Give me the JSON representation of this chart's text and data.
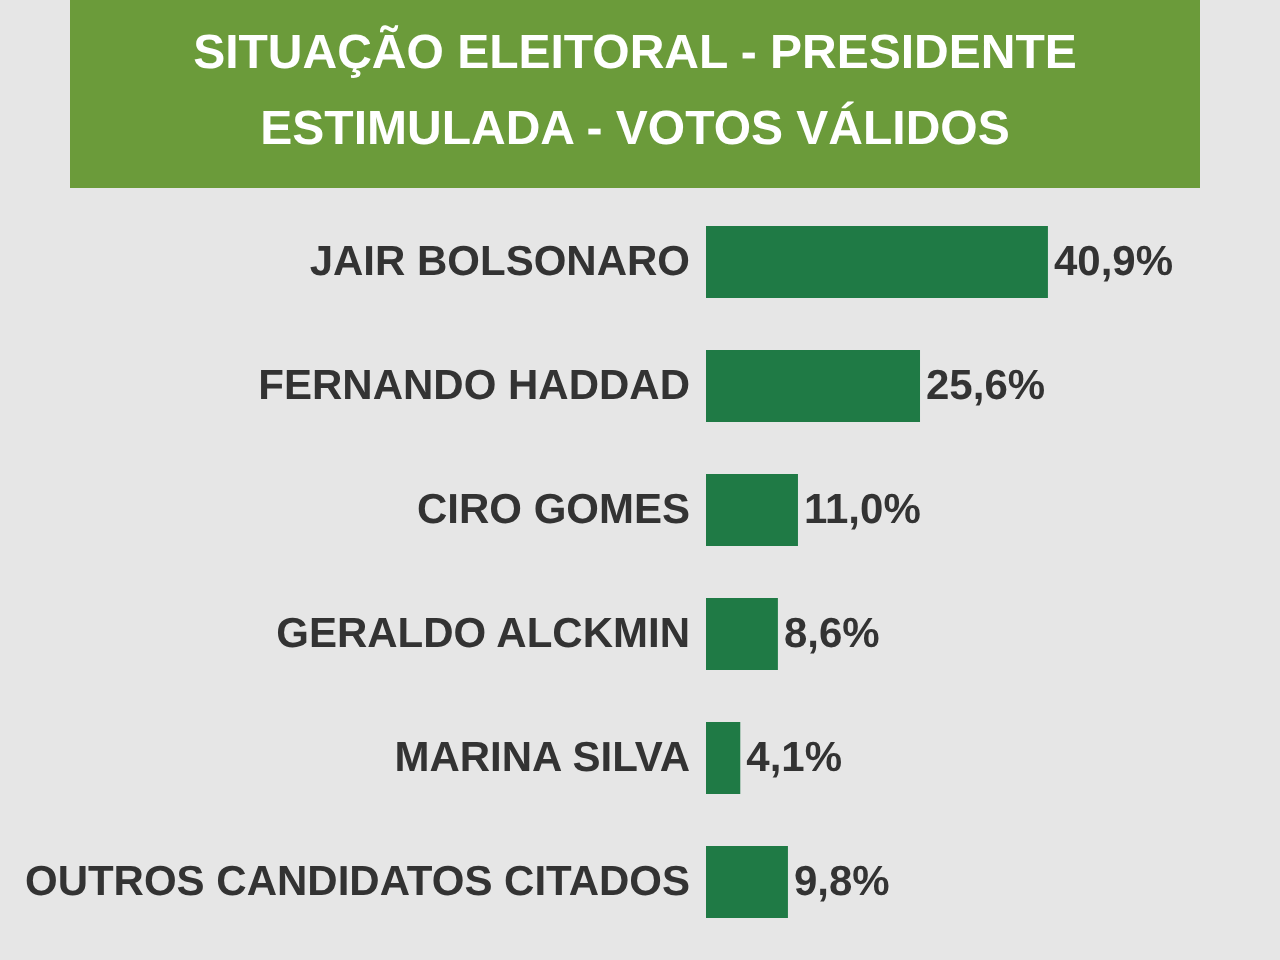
{
  "chart_data": {
    "type": "bar",
    "orientation": "horizontal",
    "title": "SITUAÇÃO ELEITORAL - PRESIDENTE",
    "subtitle": "ESTIMULADA - VOTOS VÁLIDOS",
    "categories": [
      "JAIR BOLSONARO",
      "FERNANDO HADDAD",
      "CIRO GOMES",
      "GERALDO ALCKMIN",
      "MARINA SILVA",
      "OUTROS CANDIDATOS CITADOS"
    ],
    "values": [
      40.9,
      25.6,
      11.0,
      8.6,
      4.1,
      9.8
    ],
    "value_labels": [
      "40,9%",
      "25,6%",
      "11,0%",
      "8,6%",
      "4,1%",
      "9,8%"
    ],
    "color": "#1f7a45"
  }
}
